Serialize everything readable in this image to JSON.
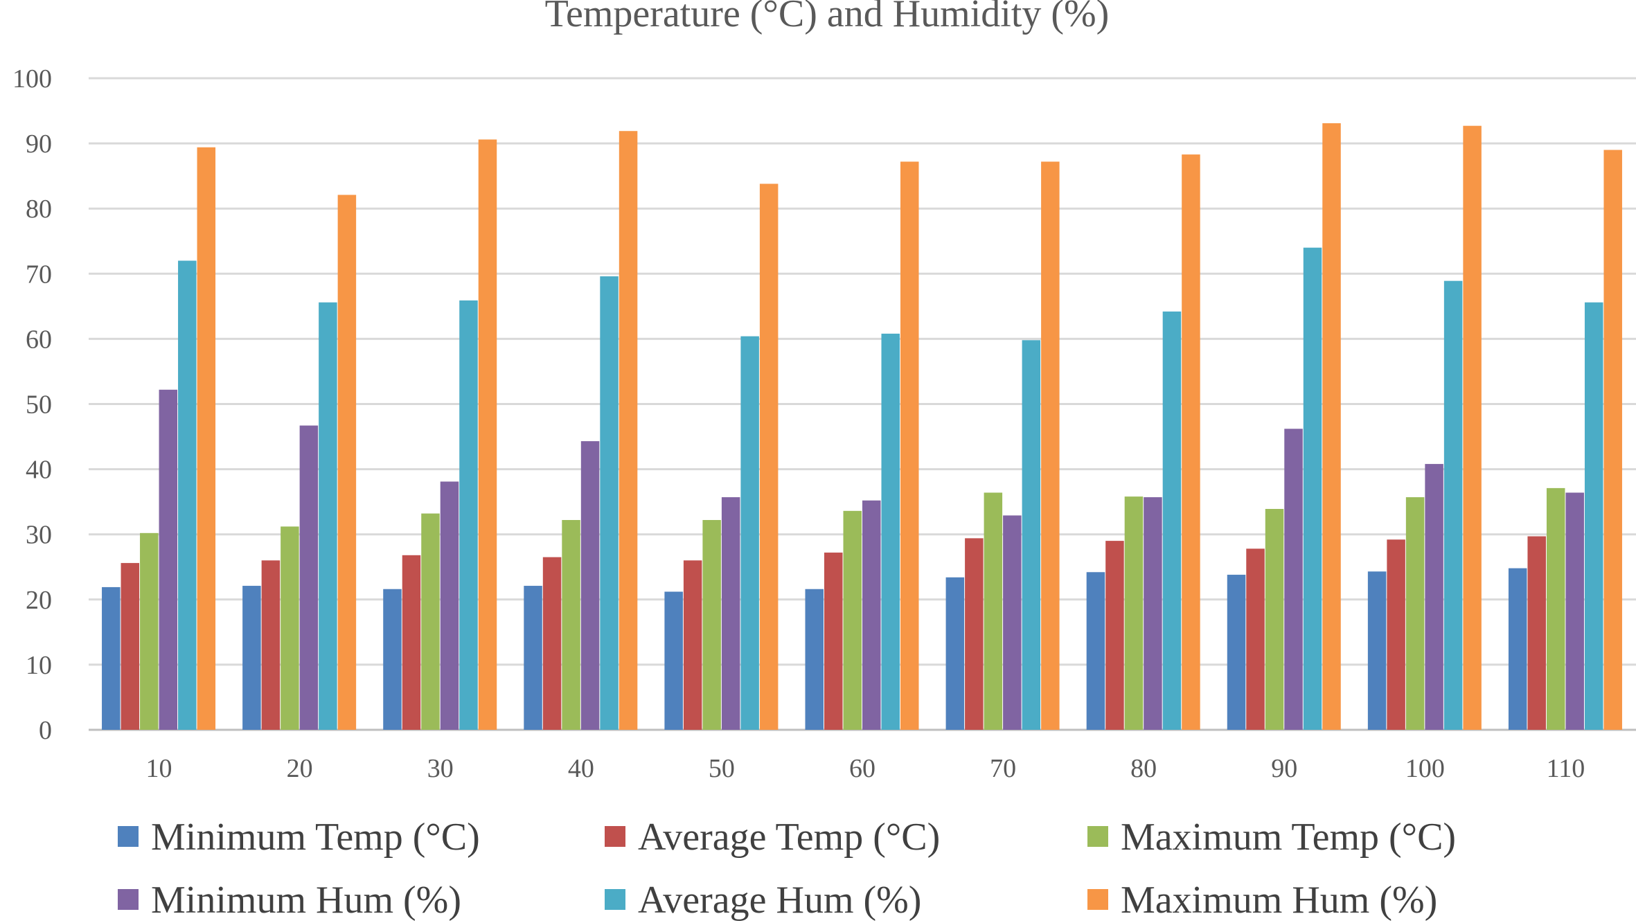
{
  "chart_data": {
    "type": "bar",
    "title": "Temperature (°C) and Humidity (%)",
    "xlabel": "",
    "ylabel": "",
    "ylim": [
      0,
      100
    ],
    "yticks": [
      "0",
      "10",
      "20",
      "30",
      "40",
      "50",
      "60",
      "70",
      "80",
      "90",
      "100"
    ],
    "grid": true,
    "legend_position": "bottom",
    "categories": [
      "10",
      "20",
      "30",
      "40",
      "50",
      "60",
      "70",
      "80",
      "90",
      "100",
      "110"
    ],
    "series": [
      {
        "name": "Minimum Temp (°C)",
        "color": "#4F81BD",
        "values": [
          21.9,
          22.1,
          21.6,
          22.1,
          21.2,
          21.6,
          23.4,
          24.2,
          23.8,
          24.3,
          24.8
        ]
      },
      {
        "name": "Average Temp (°C)",
        "color": "#C0504D",
        "values": [
          25.6,
          26.0,
          26.8,
          26.5,
          26.0,
          27.2,
          29.4,
          29.0,
          27.8,
          29.2,
          29.7
        ]
      },
      {
        "name": "Maximum Temp (°C)",
        "color": "#9BBB59",
        "values": [
          30.2,
          31.2,
          33.2,
          32.2,
          32.2,
          33.6,
          36.4,
          35.8,
          33.9,
          35.7,
          37.1
        ]
      },
      {
        "name": "Minimum Hum (%)",
        "color": "#8064A2",
        "values": [
          52.2,
          46.7,
          38.1,
          44.3,
          35.7,
          35.2,
          32.9,
          35.7,
          46.2,
          40.8,
          36.4
        ]
      },
      {
        "name": "Average Hum (%)",
        "color": "#4BACC6",
        "values": [
          72.0,
          65.6,
          65.9,
          69.6,
          60.4,
          60.8,
          59.8,
          64.2,
          74.0,
          68.9,
          65.6
        ]
      },
      {
        "name": "Maximum Hum (%)",
        "color": "#F79646",
        "values": [
          89.4,
          82.1,
          90.6,
          91.9,
          83.8,
          87.2,
          87.2,
          88.3,
          93.1,
          92.7,
          89.0
        ]
      }
    ]
  }
}
